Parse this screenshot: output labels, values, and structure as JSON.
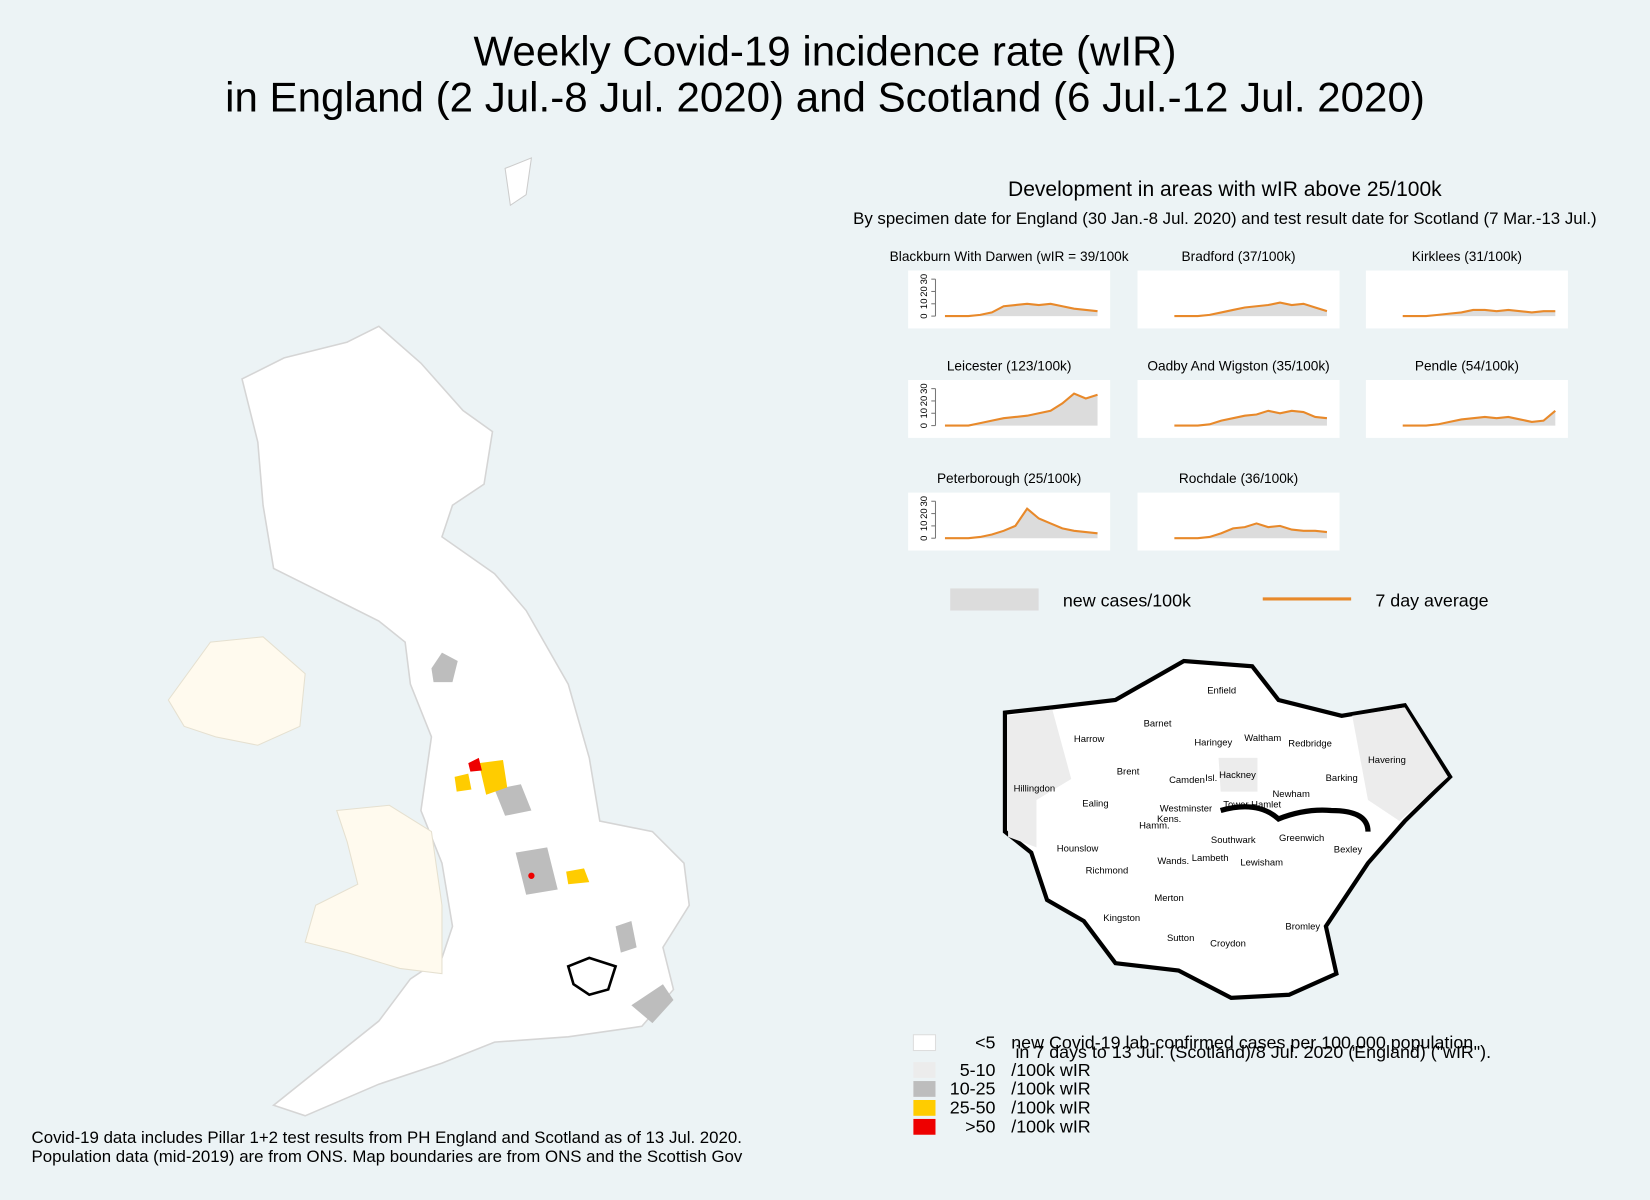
{
  "header": {
    "title_lines": [
      "Weekly Covid-19 incidence rate (wIR)",
      "in England (2 Jul.-8 Jul. 2020) and Scotland (6 Jul.-12 Jul. 2020)"
    ]
  },
  "sparklines": {
    "title": "Development in areas with wIR above 25/100k",
    "subtitle": "By specimen date for England (30 Jan.-8 Jul. 2020) and test result date for Scotland (7 Mar.-13 Jul.)",
    "ylim": [
      -10,
      37
    ],
    "yticks": [
      0,
      10,
      20,
      30
    ],
    "line_color": "#e8892a",
    "area_color": "#dcdcdc",
    "panels": [
      {
        "name": "Blackburn With Darwen (wIR = 39/100k",
        "values": [
          0,
          0,
          0,
          1,
          3,
          8,
          9,
          10,
          9,
          10,
          8,
          6,
          5,
          4
        ]
      },
      {
        "name": "Bradford (37/100k)",
        "values": [
          0,
          0,
          0,
          1,
          3,
          5,
          7,
          8,
          9,
          11,
          9,
          10,
          7,
          4
        ]
      },
      {
        "name": "Kirklees (31/100k)",
        "values": [
          0,
          0,
          0,
          1,
          2,
          3,
          5,
          5,
          4,
          5,
          4,
          3,
          4,
          4
        ]
      },
      {
        "name": "Leicester (123/100k)",
        "values": [
          0,
          0,
          0,
          2,
          4,
          6,
          7,
          8,
          10,
          12,
          18,
          26,
          22,
          25
        ]
      },
      {
        "name": "Oadby And Wigston (35/100k)",
        "values": [
          0,
          0,
          0,
          1,
          4,
          6,
          8,
          9,
          12,
          10,
          12,
          11,
          7,
          6
        ]
      },
      {
        "name": "Pendle (54/100k)",
        "values": [
          0,
          0,
          0,
          1,
          3,
          5,
          6,
          7,
          6,
          7,
          5,
          3,
          4,
          12
        ]
      },
      {
        "name": "Peterborough (25/100k)",
        "values": [
          0,
          0,
          0,
          1,
          3,
          6,
          10,
          24,
          16,
          12,
          8,
          6,
          5,
          4
        ]
      },
      {
        "name": "Rochdale (36/100k)",
        "values": [
          0,
          0,
          0,
          1,
          4,
          8,
          9,
          12,
          9,
          10,
          7,
          6,
          6,
          5
        ]
      }
    ],
    "legend": [
      "new cases/100k",
      "7 day average"
    ]
  },
  "london": {
    "boroughs": [
      "Enfield",
      "Barnet",
      "Harrow",
      "Haringey",
      "Waltham",
      "Redbridge",
      "Havering",
      "Brent",
      "Camden",
      "Isl.",
      "Hackney",
      "Hillingdon",
      "Barking",
      "Newham",
      "Ealing",
      "Westminster",
      "Tower Hamlet",
      "Kens.",
      "Hamm.",
      "Greenwich",
      "Southwark",
      "Hounslow",
      "Bexley",
      "Lambeth",
      "Wands.",
      "Lewisham",
      "Richmond",
      "Merton",
      "Kingston",
      "Bromley",
      "Sutton",
      "Croydon"
    ]
  },
  "legend": {
    "items": [
      {
        "range": "<5",
        "color": "#ffffff",
        "description": "new Covid-19 lab-confirmed cases per 100,000 population"
      },
      {
        "range": "5-10",
        "color": "#ececec",
        "description": "/100k wIR"
      },
      {
        "range": "10-25",
        "color": "#bdbdbd",
        "description": "/100k wIR"
      },
      {
        "range": "25-50",
        "color": "#ffcc00",
        "description": "/100k wIR"
      },
      {
        "range": ">50",
        "color": "#ee0000",
        "description": "/100k wIR"
      }
    ],
    "note": "in 7 days to 13 Jul. (Scotland)/8 Jul. 2020 (England) (\"wIR\")."
  },
  "footnote": [
    "Covid-19 data includes Pillar 1+2 test results from PH England and Scotland as of 13 Jul. 2020.",
    "Population data (mid-2019) are from ONS. Map boundaries are from ONS and the Scottish Gov"
  ]
}
